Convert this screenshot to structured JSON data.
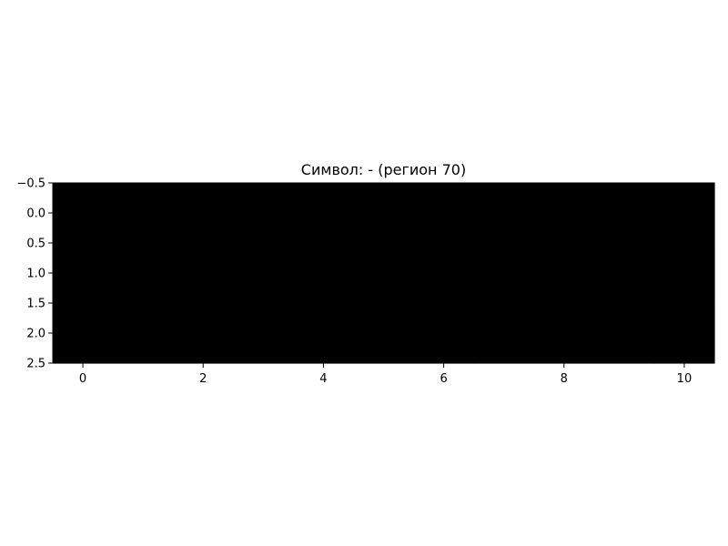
{
  "chart_data": {
    "type": "heatmap",
    "title": "Символ: - (регион 70)",
    "xlabel": "",
    "ylabel": "",
    "colormap": "gray",
    "rows": 3,
    "cols": 11,
    "values": [
      [
        0,
        0,
        0,
        0,
        0,
        0,
        0,
        0,
        0,
        0,
        0
      ],
      [
        0,
        0,
        0,
        0,
        0,
        0,
        0,
        0,
        0,
        0,
        0
      ],
      [
        0,
        0,
        0,
        0,
        0,
        0,
        0,
        0,
        0,
        0,
        0
      ]
    ],
    "xlim": [
      -0.5,
      10.5
    ],
    "ylim": [
      2.5,
      -0.5
    ],
    "x_ticks": [
      "0",
      "2",
      "4",
      "6",
      "8",
      "10"
    ],
    "y_ticks": [
      "−0.5",
      "0.0",
      "0.5",
      "1.0",
      "1.5",
      "2.0",
      "2.5"
    ],
    "grid": false,
    "colors": {
      "on": "#ffffff",
      "off": "#000000",
      "axis": "#000000",
      "background": "#ffffff"
    }
  }
}
